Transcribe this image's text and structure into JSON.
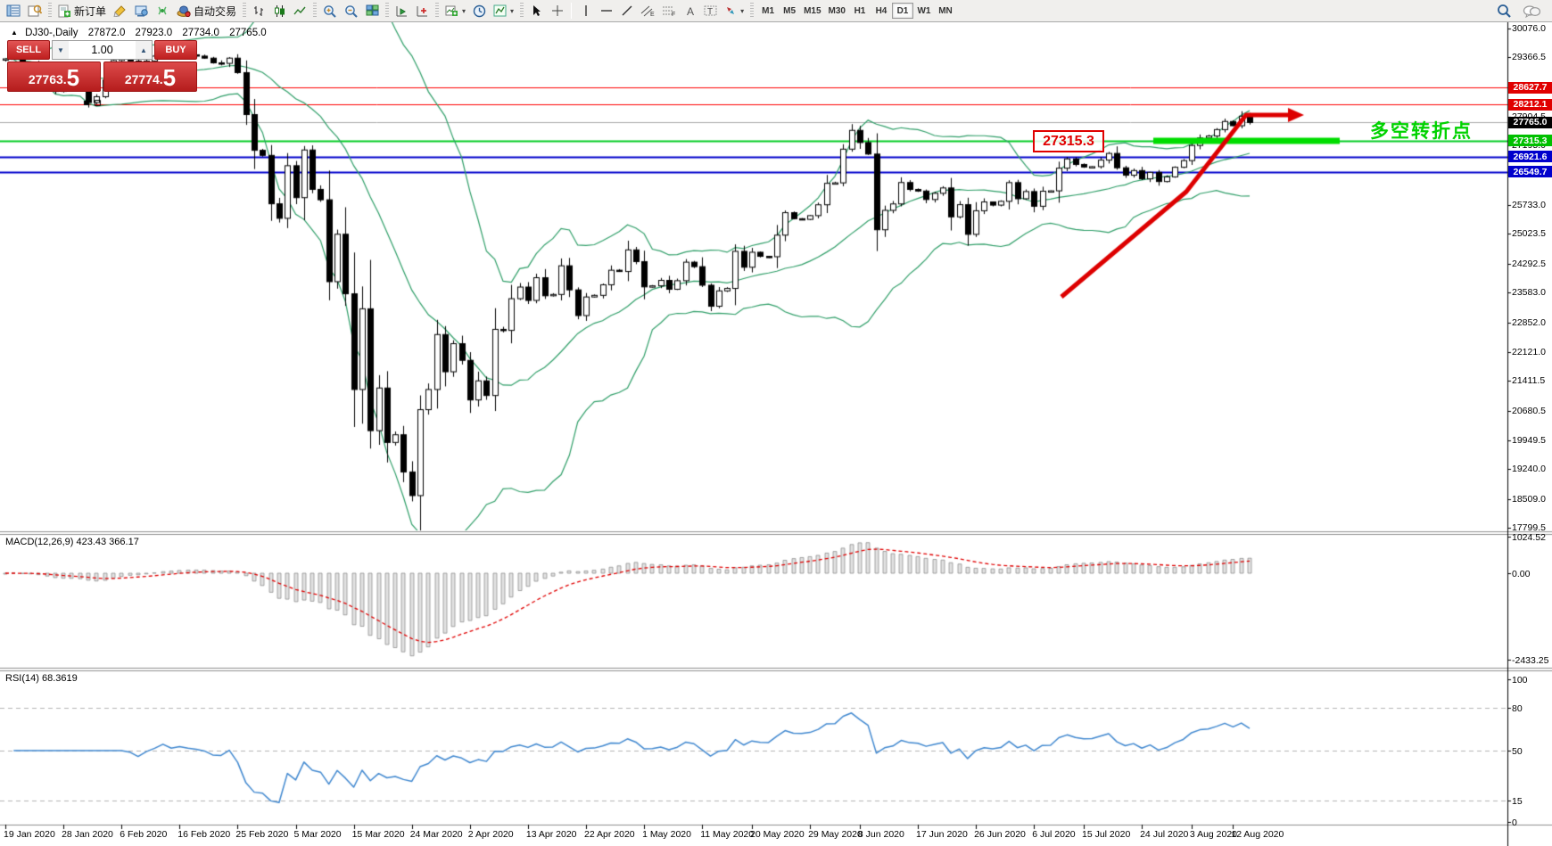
{
  "toolbar": {
    "new_order_label": "新订单",
    "auto_trading_label": "自动交易",
    "timeframes": [
      {
        "label": "M1",
        "active": false
      },
      {
        "label": "M5",
        "active": false
      },
      {
        "label": "M15",
        "active": false
      },
      {
        "label": "M30",
        "active": false
      },
      {
        "label": "H1",
        "active": false
      },
      {
        "label": "H4",
        "active": false
      },
      {
        "label": "D1",
        "active": true
      },
      {
        "label": "W1",
        "active": false
      },
      {
        "label": "MN",
        "active": false
      }
    ]
  },
  "window": {
    "symbol": "DJ30-,Daily",
    "open": "27872.0",
    "high": "27923.0",
    "low": "27734.0",
    "close": "27765.0"
  },
  "quote_panel": {
    "sell_label": "SELL",
    "buy_label": "BUY",
    "volume": "1.00",
    "sell_price_main": "27763",
    "sell_price_dot": ".",
    "sell_price_big": "5",
    "buy_price_main": "27774",
    "buy_price_dot": ".",
    "buy_price_big": "5"
  },
  "macd_panel": {
    "label": "MACD(12,26,9) 423.43 366.17",
    "scale": [
      {
        "label": "1024.52",
        "v": 1024.52
      },
      {
        "label": "0.00",
        "v": 0
      },
      {
        "label": "-2433.25",
        "v": -2433.25
      }
    ]
  },
  "rsi_panel": {
    "label": "RSI(14) 68.3619",
    "scale": [
      {
        "label": "100",
        "v": 100
      },
      {
        "label": "80",
        "v": 80
      },
      {
        "label": "50",
        "v": 50
      },
      {
        "label": "15",
        "v": 15
      },
      {
        "label": "0",
        "v": 0
      }
    ],
    "levels": [
      80,
      50,
      15
    ]
  },
  "price_axis": {
    "ticks": [
      "30076.0",
      "29366.5",
      "27904.5",
      "27195.0",
      "26484.0",
      "25733.0",
      "25023.5",
      "24292.5",
      "23583.0",
      "22852.0",
      "22121.0",
      "21411.5",
      "20680.5",
      "19949.5",
      "19240.0",
      "18509.0",
      "17799.5"
    ],
    "badges": [
      {
        "label": "28627.7",
        "price": 28627.7,
        "color": "#e00000"
      },
      {
        "label": "28212.1",
        "price": 28212.1,
        "color": "#e00000"
      },
      {
        "label": "27765.0",
        "price": 27765.0,
        "color": "#000000"
      },
      {
        "label": "27315.3",
        "price": 27315.3,
        "color": "#00c000"
      },
      {
        "label": "26921.6",
        "price": 26921.6,
        "color": "#0000cc"
      },
      {
        "label": "26549.7",
        "price": 26549.7,
        "color": "#0000cc"
      }
    ]
  },
  "date_axis": [
    {
      "label": "19 Jan 2020",
      "bar": 0
    },
    {
      "label": "28 Jan 2020",
      "bar": 7
    },
    {
      "label": "6 Feb 2020",
      "bar": 14
    },
    {
      "label": "16 Feb 2020",
      "bar": 21
    },
    {
      "label": "25 Feb 2020",
      "bar": 28
    },
    {
      "label": "5 Mar 2020",
      "bar": 35
    },
    {
      "label": "15 Mar 2020",
      "bar": 42
    },
    {
      "label": "24 Mar 2020",
      "bar": 49
    },
    {
      "label": "2 Apr 2020",
      "bar": 56
    },
    {
      "label": "13 Apr 2020",
      "bar": 63
    },
    {
      "label": "22 Apr 2020",
      "bar": 70
    },
    {
      "label": "1 May 2020",
      "bar": 77
    },
    {
      "label": "11 May 2020",
      "bar": 84
    },
    {
      "label": "20 May 2020",
      "bar": 90
    },
    {
      "label": "29 May 2020",
      "bar": 97
    },
    {
      "label": "8 Jun 2020",
      "bar": 103
    },
    {
      "label": "17 Jun 2020",
      "bar": 110
    },
    {
      "label": "26 Jun 2020",
      "bar": 117
    },
    {
      "label": "6 Jul 2020",
      "bar": 124
    },
    {
      "label": "15 Jul 2020",
      "bar": 130
    },
    {
      "label": "24 Jul 2020",
      "bar": 137
    },
    {
      "label": "3 Aug 2020",
      "bar": 143
    },
    {
      "label": "12 Aug 2020",
      "bar": 148
    }
  ],
  "annotations": {
    "support_label": "27315.3",
    "turning_point_text": "多空转折点",
    "arrow_color": "#dd0000",
    "trend_segment_color": "#00dd00"
  },
  "chart_data": {
    "type": "candlestick",
    "symbol": "DJ30-",
    "period": "Daily",
    "price_range": {
      "top": 30076.0,
      "bottom": 17799.5
    },
    "levels": [
      {
        "price": 28627.7,
        "color": "#ff0000",
        "width": 1
      },
      {
        "price": 28212.1,
        "color": "#ff0000",
        "width": 1
      },
      {
        "price": 27765.0,
        "color": "#a8a8a8",
        "width": 1
      },
      {
        "price": 27315.3,
        "color": "#00cc22",
        "width": 2
      },
      {
        "price": 26921.6,
        "color": "#0000cc",
        "width": 2
      },
      {
        "price": 26549.7,
        "color": "#0000cc",
        "width": 2
      }
    ],
    "closes": [
      29330,
      29350,
      29196,
      29186,
      28990,
      28722,
      28536,
      28723,
      28859,
      28734,
      28256,
      28400,
      28807,
      29290,
      29380,
      29276,
      29102,
      29276,
      29398,
      29551,
      29423,
      29480,
      29430,
      29398,
      29348,
      29232,
      29219,
      29348,
      28992,
      27960,
      27081,
      26957,
      25766,
      25409,
      26703,
      25917,
      27090,
      26121,
      25865,
      23851,
      25018,
      23553,
      21200,
      23185,
      20188,
      21237,
      19898,
      20087,
      19173,
      18591,
      20704,
      21200,
      22552,
      21636,
      22327,
      21917,
      20943,
      21413,
      21052,
      22679,
      22653,
      23433,
      23719,
      23390,
      23949,
      23504,
      23537,
      24242,
      23650,
      23018,
      23475,
      23515,
      23775,
      24133,
      24101,
      24633,
      24345,
      23723,
      23749,
      23883,
      23664,
      23875,
      24331,
      24221,
      23764,
      23247,
      23625,
      23685,
      24597,
      24206,
      24575,
      24474,
      24465,
      24995,
      25548,
      25400,
      25383,
      25475,
      25742,
      26269,
      26281,
      27110,
      27572,
      27272,
      26989,
      25128,
      25605,
      25763,
      26289,
      26119,
      26080,
      25871,
      26024,
      26156,
      25445,
      25745,
      25015,
      25595,
      25812,
      25734,
      25827,
      26287,
      25890,
      26067,
      25706,
      26075,
      26085,
      26642,
      26870,
      26734,
      26671,
      26680,
      26840,
      27005,
      26652,
      26469,
      26584,
      26379,
      26539,
      26313,
      26428,
      26664,
      26828,
      27201,
      27386,
      27433,
      27591,
      27791,
      27686,
      27920,
      27765
    ],
    "indicators": [
      {
        "name": "Bollinger Bands",
        "period": 20,
        "deviation": 2,
        "color": "#2f9e68"
      },
      {
        "name": "MACD",
        "params": "12,26,9",
        "current": [
          423.43,
          366.17
        ]
      },
      {
        "name": "RSI",
        "period": 14,
        "current": 68.3619
      }
    ]
  }
}
